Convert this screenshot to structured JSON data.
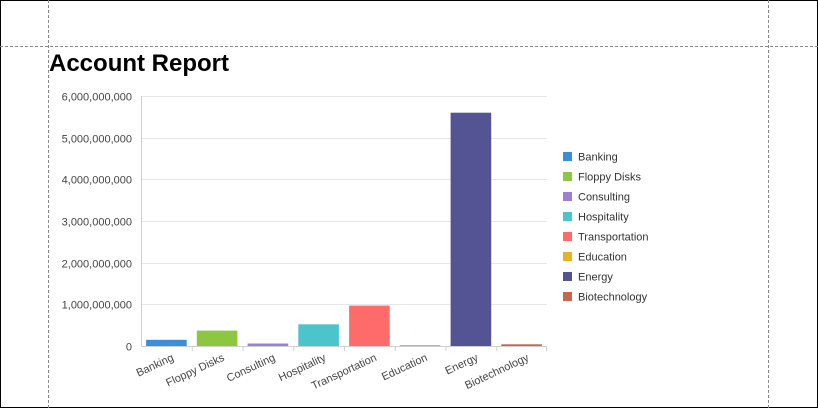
{
  "report": {
    "title": "Account Report"
  },
  "colors": {
    "Banking": "#3a8fd6",
    "Floppy Disks": "#8dc63f",
    "Consulting": "#9b7fd4",
    "Hospitality": "#4cc4cc",
    "Transportation": "#ff6b6b",
    "Education": "#e6b422",
    "Energy": "#545494",
    "Biotechnology": "#c8654a"
  },
  "chart_data": {
    "type": "bar",
    "categories": [
      "Banking",
      "Floppy Disks",
      "Consulting",
      "Hospitality",
      "Transportation",
      "Education",
      "Energy",
      "Biotechnology"
    ],
    "values": [
      150000000,
      370000000,
      60000000,
      520000000,
      970000000,
      5000000,
      5600000000,
      40000000
    ],
    "ylim": [
      0,
      6000000000
    ],
    "yticks": [
      "0",
      "1,000,000,000",
      "2,000,000,000",
      "3,000,000,000",
      "4,000,000,000",
      "5,000,000,000",
      "6,000,000,000"
    ],
    "ytick_values": [
      0,
      1000000000,
      2000000000,
      3000000000,
      4000000000,
      5000000000,
      6000000000
    ],
    "grid": true,
    "legend": "right",
    "legend_entries": [
      "Banking",
      "Floppy Disks",
      "Consulting",
      "Hospitality",
      "Transportation",
      "Education",
      "Energy",
      "Biotechnology"
    ]
  }
}
